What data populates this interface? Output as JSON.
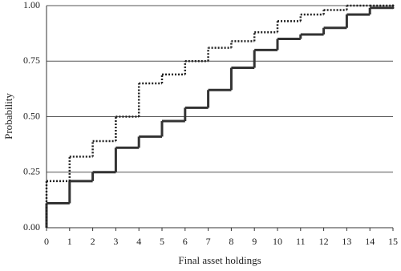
{
  "chart_data": {
    "type": "step",
    "x_label": "Final asset holdings",
    "y_label": "Probability",
    "x": [
      0,
      1,
      2,
      3,
      4,
      5,
      6,
      7,
      8,
      9,
      10,
      11,
      12,
      13,
      14,
      15
    ],
    "series": [
      {
        "color": "#333333",
        "dash": "solid",
        "values": [
          0.11,
          0.21,
          0.25,
          0.36,
          0.41,
          0.48,
          0.54,
          0.62,
          0.72,
          0.8,
          0.85,
          0.87,
          0.9,
          0.96,
          0.99,
          0.99
        ]
      },
      {
        "color": "#222222",
        "dash": "dotted",
        "values": [
          0.21,
          0.32,
          0.39,
          0.5,
          0.65,
          0.69,
          0.75,
          0.81,
          0.84,
          0.88,
          0.93,
          0.96,
          0.98,
          1.0,
          1.0,
          1.0
        ]
      }
    ],
    "xlim": [
      0,
      15
    ],
    "xticks": [
      0,
      1,
      2,
      3,
      4,
      5,
      6,
      7,
      8,
      9,
      10,
      11,
      12,
      13,
      14,
      15
    ],
    "ylim": [
      0,
      1
    ],
    "yticks": [
      {
        "value": 0,
        "label": "0.00"
      },
      {
        "value": 0.25,
        "label": "0.25"
      },
      {
        "value": 0.5,
        "label": "0.50"
      },
      {
        "value": 0.75,
        "label": "0.75"
      },
      {
        "value": 1,
        "label": "1.00"
      }
    ],
    "grid": true
  }
}
